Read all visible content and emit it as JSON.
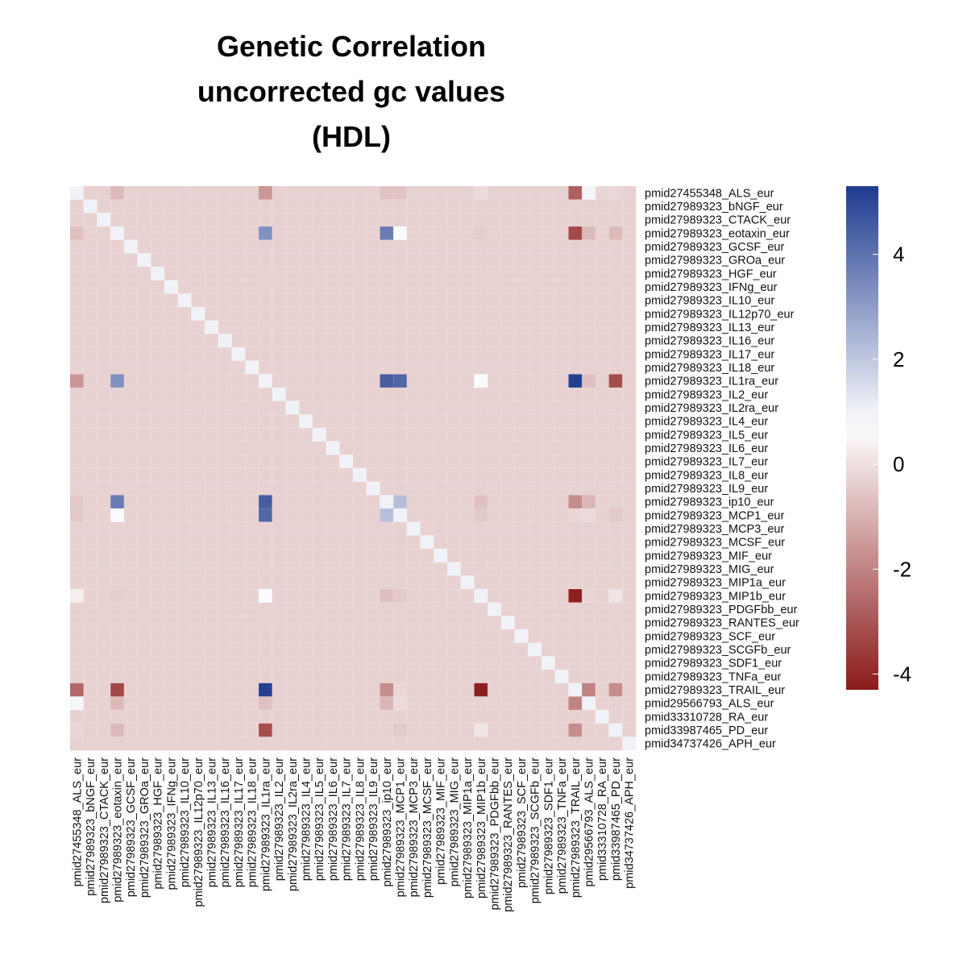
{
  "title": [
    "Genetic Correlation",
    "uncorrected gc values",
    "(HDL)"
  ],
  "chart_data": {
    "type": "heatmap",
    "title": "Genetic Correlation uncorrected gc values (HDL)",
    "labels": [
      "pmid27455348_ALS_eur",
      "pmid27989323_bNGF_eur",
      "pmid27989323_CTACK_eur",
      "pmid27989323_eotaxin_eur",
      "pmid27989323_GCSF_eur",
      "pmid27989323_GROa_eur",
      "pmid27989323_HGF_eur",
      "pmid27989323_IFNg_eur",
      "pmid27989323_IL10_eur",
      "pmid27989323_IL12p70_eur",
      "pmid27989323_IL13_eur",
      "pmid27989323_IL16_eur",
      "pmid27989323_IL17_eur",
      "pmid27989323_IL18_eur",
      "pmid27989323_IL1ra_eur",
      "pmid27989323_IL2_eur",
      "pmid27989323_IL2ra_eur",
      "pmid27989323_IL4_eur",
      "pmid27989323_IL5_eur",
      "pmid27989323_IL6_eur",
      "pmid27989323_IL7_eur",
      "pmid27989323_IL8_eur",
      "pmid27989323_IL9_eur",
      "pmid27989323_ip10_eur",
      "pmid27989323_MCP1_eur",
      "pmid27989323_MCP3_eur",
      "pmid27989323_MCSF_eur",
      "pmid27989323_MIF_eur",
      "pmid27989323_MIG_eur",
      "pmid27989323_MIP1a_eur",
      "pmid27989323_MIP1b_eur",
      "pmid27989323_PDGFbb_eur",
      "pmid27989323_RANTES_eur",
      "pmid27989323_SCF_eur",
      "pmid27989323_SCGFb_eur",
      "pmid27989323_SDF1_eur",
      "pmid27989323_TNFa_eur",
      "pmid27989323_TRAIL_eur",
      "pmid29566793_ALS_eur",
      "pmid33310728_RA_eur",
      "pmid33987465_PD_eur",
      "pmid34737426_APH_eur"
    ],
    "default_value": -0.3,
    "diagonal_value": 1,
    "cells": [
      {
        "row": 0,
        "col": 3,
        "value": -0.8
      },
      {
        "row": 0,
        "col": 14,
        "value": -1.6
      },
      {
        "row": 0,
        "col": 23,
        "value": -0.6
      },
      {
        "row": 0,
        "col": 24,
        "value": -0.6
      },
      {
        "row": 0,
        "col": 30,
        "value": -0.1
      },
      {
        "row": 0,
        "col": 37,
        "value": -2.8
      },
      {
        "row": 0,
        "col": 38,
        "value": 0.9
      },
      {
        "row": 0,
        "col": 39,
        "value": -0.2
      },
      {
        "row": 0,
        "col": 40,
        "value": -0.2
      },
      {
        "row": 3,
        "col": 0,
        "value": -0.7
      },
      {
        "row": 3,
        "col": 14,
        "value": 3.3
      },
      {
        "row": 3,
        "col": 23,
        "value": 3.8
      },
      {
        "row": 3,
        "col": 24,
        "value": 0.8
      },
      {
        "row": 3,
        "col": 30,
        "value": -0.4
      },
      {
        "row": 3,
        "col": 37,
        "value": -3.3
      },
      {
        "row": 3,
        "col": 38,
        "value": -0.8
      },
      {
        "row": 3,
        "col": 40,
        "value": -0.8
      },
      {
        "row": 14,
        "col": 0,
        "value": -1.6
      },
      {
        "row": 14,
        "col": 3,
        "value": 3.3
      },
      {
        "row": 14,
        "col": 23,
        "value": 4.5
      },
      {
        "row": 14,
        "col": 24,
        "value": 4.3
      },
      {
        "row": 14,
        "col": 30,
        "value": 0.8
      },
      {
        "row": 14,
        "col": 37,
        "value": 5.2
      },
      {
        "row": 14,
        "col": 38,
        "value": -0.7
      },
      {
        "row": 14,
        "col": 40,
        "value": -3.2
      },
      {
        "row": 23,
        "col": 0,
        "value": -0.5
      },
      {
        "row": 23,
        "col": 3,
        "value": 3.8
      },
      {
        "row": 23,
        "col": 14,
        "value": 4.5
      },
      {
        "row": 23,
        "col": 24,
        "value": 2.2
      },
      {
        "row": 23,
        "col": 30,
        "value": -0.7
      },
      {
        "row": 23,
        "col": 37,
        "value": -1.8
      },
      {
        "row": 23,
        "col": 38,
        "value": -0.9
      },
      {
        "row": 24,
        "col": 0,
        "value": -0.5
      },
      {
        "row": 24,
        "col": 3,
        "value": 0.8
      },
      {
        "row": 24,
        "col": 14,
        "value": 4.3
      },
      {
        "row": 24,
        "col": 23,
        "value": 2.2
      },
      {
        "row": 24,
        "col": 30,
        "value": -0.5
      },
      {
        "row": 24,
        "col": 37,
        "value": -0.2
      },
      {
        "row": 24,
        "col": 38,
        "value": -0.1
      },
      {
        "row": 24,
        "col": 40,
        "value": -0.5
      },
      {
        "row": 30,
        "col": 0,
        "value": 0.3
      },
      {
        "row": 30,
        "col": 3,
        "value": -0.4
      },
      {
        "row": 30,
        "col": 14,
        "value": 0.8
      },
      {
        "row": 30,
        "col": 23,
        "value": -0.7
      },
      {
        "row": 30,
        "col": 24,
        "value": -0.5
      },
      {
        "row": 30,
        "col": 37,
        "value": -4.2
      },
      {
        "row": 30,
        "col": 38,
        "value": -0.2
      },
      {
        "row": 30,
        "col": 40,
        "value": 0.1
      },
      {
        "row": 37,
        "col": 0,
        "value": -2.6
      },
      {
        "row": 37,
        "col": 3,
        "value": -3.3
      },
      {
        "row": 37,
        "col": 14,
        "value": 5.2
      },
      {
        "row": 37,
        "col": 23,
        "value": -1.8
      },
      {
        "row": 37,
        "col": 24,
        "value": -0.2
      },
      {
        "row": 37,
        "col": 30,
        "value": -4.2
      },
      {
        "row": 37,
        "col": 38,
        "value": -2.0
      },
      {
        "row": 37,
        "col": 40,
        "value": -1.8
      },
      {
        "row": 38,
        "col": 0,
        "value": 0.9
      },
      {
        "row": 38,
        "col": 3,
        "value": -0.8
      },
      {
        "row": 38,
        "col": 14,
        "value": -0.7
      },
      {
        "row": 38,
        "col": 23,
        "value": -0.9
      },
      {
        "row": 38,
        "col": 24,
        "value": -0.1
      },
      {
        "row": 38,
        "col": 37,
        "value": -2.0
      },
      {
        "row": 40,
        "col": 0,
        "value": -0.2
      },
      {
        "row": 40,
        "col": 3,
        "value": -0.8
      },
      {
        "row": 40,
        "col": 14,
        "value": -3.2
      },
      {
        "row": 40,
        "col": 24,
        "value": -0.5
      },
      {
        "row": 40,
        "col": 30,
        "value": 0.1
      },
      {
        "row": 40,
        "col": 37,
        "value": -1.8
      }
    ],
    "color_scale": {
      "min": -4.3,
      "mid": 0.7,
      "max": 5.3,
      "low_color": "#8b1a1a",
      "mid_color": "#ffffff",
      "high_color": "#1f3b8f"
    },
    "legend_ticks": [
      4,
      2,
      0,
      -2,
      -4
    ]
  }
}
